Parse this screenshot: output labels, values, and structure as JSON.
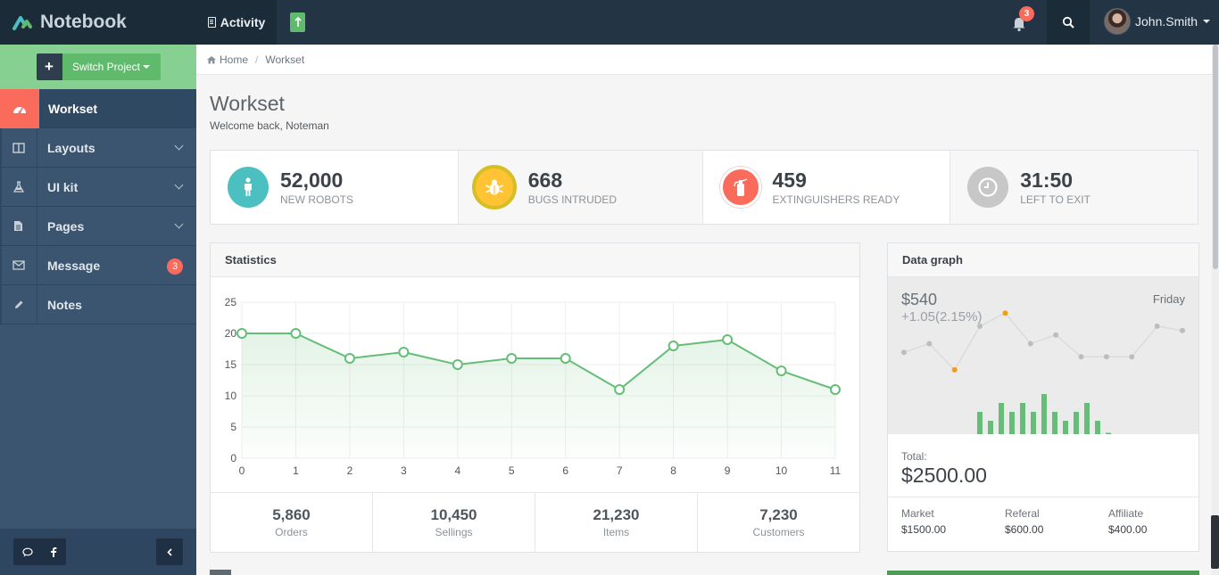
{
  "app": {
    "title": "Notebook"
  },
  "topnav": {
    "activity_label": "Activity",
    "notifications_count": "3",
    "user_name": "John.Smith"
  },
  "sidebar": {
    "switch_label": "Switch Project",
    "items": [
      {
        "label": "Workset",
        "icon": "dashboard-icon",
        "active": true
      },
      {
        "label": "Layouts",
        "icon": "columns-icon"
      },
      {
        "label": "UI kit",
        "icon": "flask-icon"
      },
      {
        "label": "Pages",
        "icon": "file-icon"
      },
      {
        "label": "Message",
        "icon": "envelope-icon",
        "badge": "3"
      },
      {
        "label": "Notes",
        "icon": "pencil-icon"
      }
    ]
  },
  "breadcrumb": {
    "home": "Home",
    "current": "Workset"
  },
  "page": {
    "title": "Workset",
    "subtitle": "Welcome back, Noteman"
  },
  "stats": [
    {
      "value": "52,000",
      "label": "NEW ROBOTS",
      "color": "#4cc0c1",
      "icon": "male-icon"
    },
    {
      "value": "668",
      "label": "BUGS INTRUDED",
      "color": "#ffc333",
      "icon": "bug-icon"
    },
    {
      "value": "459",
      "label": "EXTINGUISHERS READY",
      "color": "#fb6b5b",
      "icon": "extinguisher-icon"
    },
    {
      "value": "31:50",
      "label": "LEFT TO EXIT",
      "color": "#c7c7c7",
      "icon": "clock-icon"
    }
  ],
  "statistics": {
    "title": "Statistics",
    "footer": [
      {
        "value": "5,860",
        "label": "Orders"
      },
      {
        "value": "10,450",
        "label": "Sellings"
      },
      {
        "value": "21,230",
        "label": "Items"
      },
      {
        "value": "7,230",
        "label": "Customers"
      }
    ]
  },
  "chart_data": {
    "type": "area",
    "x": [
      0,
      1,
      2,
      3,
      4,
      5,
      6,
      7,
      8,
      9,
      10,
      11
    ],
    "series": [
      {
        "values": [
          20,
          20,
          16,
          17,
          15,
          16,
          16,
          11,
          18,
          19,
          14,
          11
        ],
        "color": "#65bd77"
      }
    ],
    "xlim": [
      0,
      11
    ],
    "ylim": [
      0,
      25
    ],
    "yticks": [
      0,
      5,
      10,
      15,
      20,
      25
    ],
    "grid": true
  },
  "datagraph": {
    "title": "Data graph",
    "price": "$540",
    "change": "+1.05(2.15%)",
    "day": "Friday",
    "sparkline": [
      13,
      15,
      9,
      19,
      22,
      15,
      17,
      12,
      12,
      12,
      19,
      18
    ],
    "highlight_indices": [
      2,
      4
    ],
    "bars": [
      5,
      3,
      7,
      5,
      7,
      5,
      9,
      5,
      3,
      5,
      7,
      3,
      0.3
    ],
    "total_label": "Total:",
    "total": "$2500.00",
    "footer": [
      {
        "label": "Market",
        "value": "$1500.00"
      },
      {
        "label": "Referal",
        "value": "$600.00"
      },
      {
        "label": "Affiliate",
        "value": "$400.00"
      }
    ]
  }
}
